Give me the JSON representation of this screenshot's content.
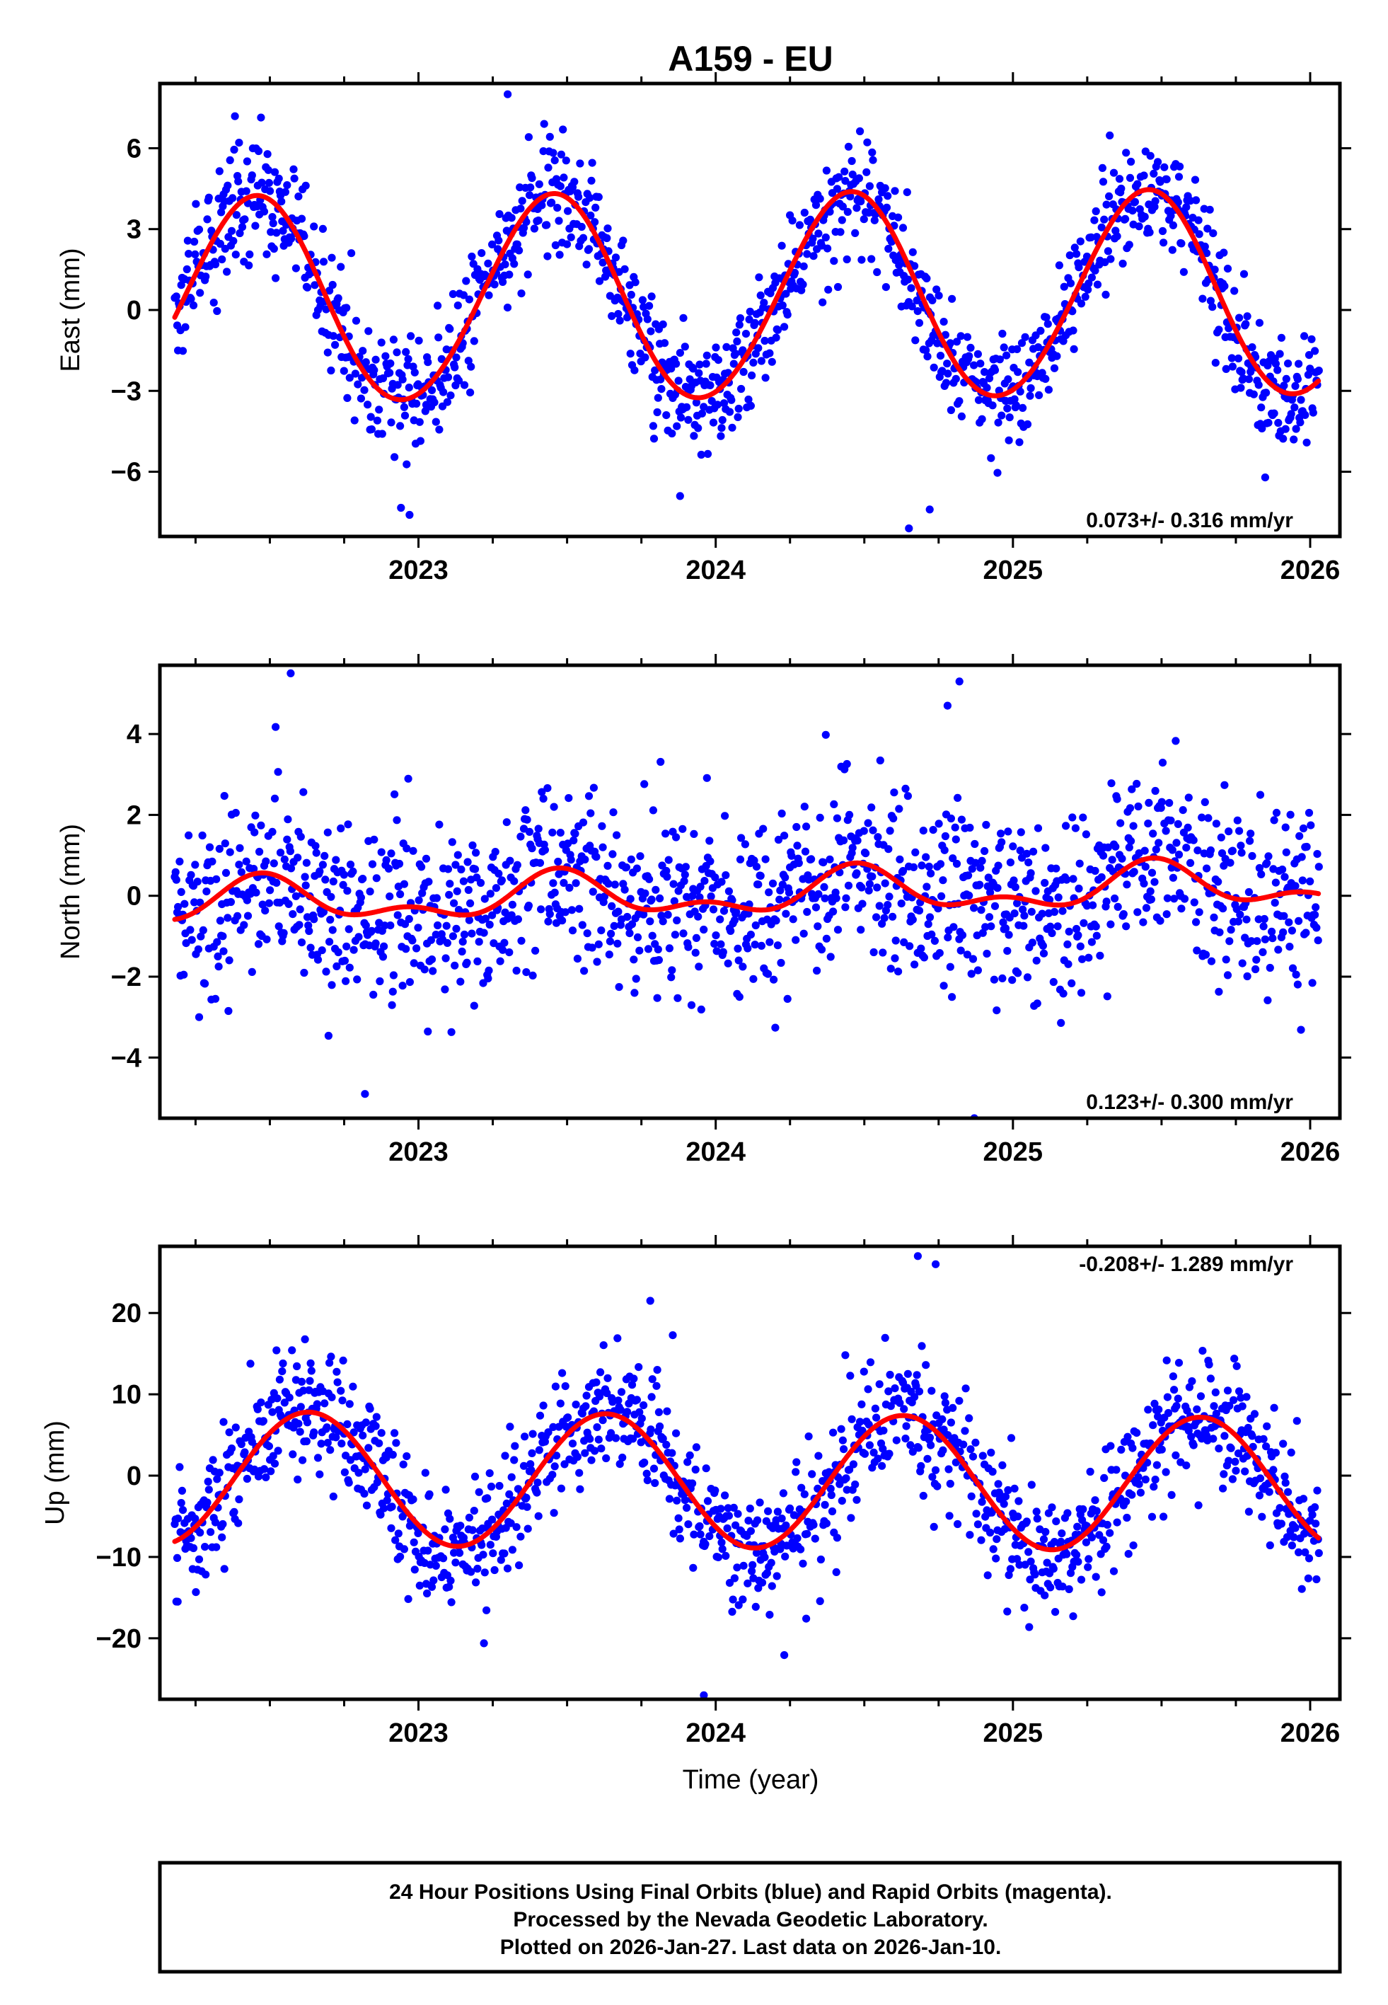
{
  "title": "A159 - EU",
  "xlabel": "Time (year)",
  "footer": {
    "line1": "24 Hour Positions Using Final Orbits (blue) and Rapid Orbits (magenta).",
    "line2": "Processed by the Nevada Geodetic Laboratory.",
    "line3": "Plotted on 2026-Jan-27. Last data on 2026-Jan-10."
  },
  "colors": {
    "final_orbit_points": "#0000ff",
    "model_curve": "#ff0000",
    "axes": "#000000"
  },
  "chart_data": [
    {
      "type": "scatter",
      "component": "east",
      "ylabel": "East (mm)",
      "rate_text": "0.073+/- 0.316 mm/yr",
      "xlim": [
        2022.13,
        2026.1
      ],
      "ylim": [
        -8.4,
        8.4
      ],
      "xticks": [
        2023,
        2024,
        2025,
        2026
      ],
      "xtick_labels": [
        "2023",
        "2024",
        "2025",
        "2026"
      ],
      "yticks": [
        6,
        3,
        0,
        -3,
        -6
      ],
      "ytick_labels": [
        "6",
        "3",
        "0",
        "−3",
        "−6"
      ],
      "series": [
        {
          "name": "Final Orbits",
          "kind": "points",
          "color": "#0000ff",
          "model": {
            "start": 2022.18,
            "end": 2026.03,
            "offset": 0.3,
            "annual_amp": 3.8,
            "annual_peak": 2022.45,
            "semiannual_amp": 0.15,
            "semiannual_peak": 2022.5,
            "trend": 0.073,
            "noise_sd": 1.05,
            "outlier_rate": 0.01,
            "outlier_extra": 2.2
          }
        },
        {
          "name": "Model fit",
          "kind": "curve",
          "color": "#ff0000",
          "model": {
            "start": 2022.18,
            "end": 2026.03,
            "offset": 0.3,
            "annual_amp": 3.8,
            "annual_peak": 2022.45,
            "semiannual_amp": 0.15,
            "semiannual_peak": 2022.5,
            "trend": 0.073
          }
        }
      ],
      "outliers": [
        {
          "x": 2023.3,
          "y": 8.0
        },
        {
          "x": 2022.97,
          "y": -7.6
        },
        {
          "x": 2024.65,
          "y": -8.1
        },
        {
          "x": 2024.72,
          "y": -7.4
        },
        {
          "x": 2023.88,
          "y": -6.9
        }
      ]
    },
    {
      "type": "scatter",
      "component": "north",
      "ylabel": "North (mm)",
      "rate_text": "0.123+/- 0.300 mm/yr",
      "xlim": [
        2022.13,
        2026.1
      ],
      "ylim": [
        -5.5,
        5.7
      ],
      "xticks": [
        2023,
        2024,
        2025,
        2026
      ],
      "xtick_labels": [
        "2023",
        "2024",
        "2025",
        "2026"
      ],
      "yticks": [
        4,
        2,
        0,
        -2,
        -4
      ],
      "ytick_labels": [
        "4",
        "2",
        "0",
        "−2",
        "−4"
      ],
      "series": [
        {
          "name": "Final Orbits",
          "kind": "points",
          "color": "#0000ff",
          "model": {
            "start": 2022.18,
            "end": 2026.03,
            "offset": -0.2,
            "annual_amp": 0.45,
            "annual_peak": 2022.48,
            "semiannual_amp": 0.28,
            "semiannual_peak": 2022.47,
            "trend": 0.123,
            "noise_sd": 1.05,
            "outlier_rate": 0.01,
            "outlier_extra": 1.8
          }
        },
        {
          "name": "Model fit",
          "kind": "curve",
          "color": "#ff0000",
          "model": {
            "start": 2022.18,
            "end": 2026.03,
            "offset": -0.2,
            "annual_amp": 0.45,
            "annual_peak": 2022.48,
            "semiannual_amp": 0.28,
            "semiannual_peak": 2022.47,
            "trend": 0.123
          }
        }
      ],
      "outliers": [
        {
          "x": 2022.57,
          "y": 5.5
        },
        {
          "x": 2024.82,
          "y": 5.3
        },
        {
          "x": 2024.87,
          "y": -5.5
        },
        {
          "x": 2022.82,
          "y": -4.9
        },
        {
          "x": 2024.78,
          "y": 4.7
        }
      ]
    },
    {
      "type": "scatter",
      "component": "up",
      "ylabel": "Up (mm)",
      "rate_text": "-0.208+/- 1.289 mm/yr",
      "xlim": [
        2022.13,
        2026.1
      ],
      "ylim": [
        -27.5,
        28.2
      ],
      "xticks": [
        2023,
        2024,
        2025,
        2026
      ],
      "xtick_labels": [
        "2023",
        "2024",
        "2025",
        "2026"
      ],
      "yticks": [
        20,
        10,
        0,
        -10,
        -20
      ],
      "ytick_labels": [
        "20",
        "10",
        "0",
        "−10",
        "−20"
      ],
      "series": [
        {
          "name": "Final Orbits",
          "kind": "points",
          "color": "#0000ff",
          "model": {
            "start": 2022.18,
            "end": 2026.03,
            "offset": -0.3,
            "annual_amp": 8.2,
            "annual_peak": 2022.63,
            "semiannual_amp": 0.0,
            "semiannual_peak": 2022.5,
            "trend": -0.208,
            "noise_sd": 3.8,
            "outlier_rate": 0.01,
            "outlier_extra": 7.0
          }
        },
        {
          "name": "Model fit",
          "kind": "curve",
          "color": "#ff0000",
          "model": {
            "start": 2022.18,
            "end": 2026.03,
            "offset": -0.3,
            "annual_amp": 8.2,
            "annual_peak": 2022.63,
            "semiannual_amp": 0.0,
            "semiannual_peak": 2022.5,
            "trend": -0.208
          }
        }
      ],
      "outliers": [
        {
          "x": 2024.68,
          "y": 27.0
        },
        {
          "x": 2024.74,
          "y": 26.0
        },
        {
          "x": 2023.96,
          "y": -27.0
        },
        {
          "x": 2023.78,
          "y": 21.5
        },
        {
          "x": 2022.19,
          "y": -15.5
        }
      ]
    }
  ]
}
